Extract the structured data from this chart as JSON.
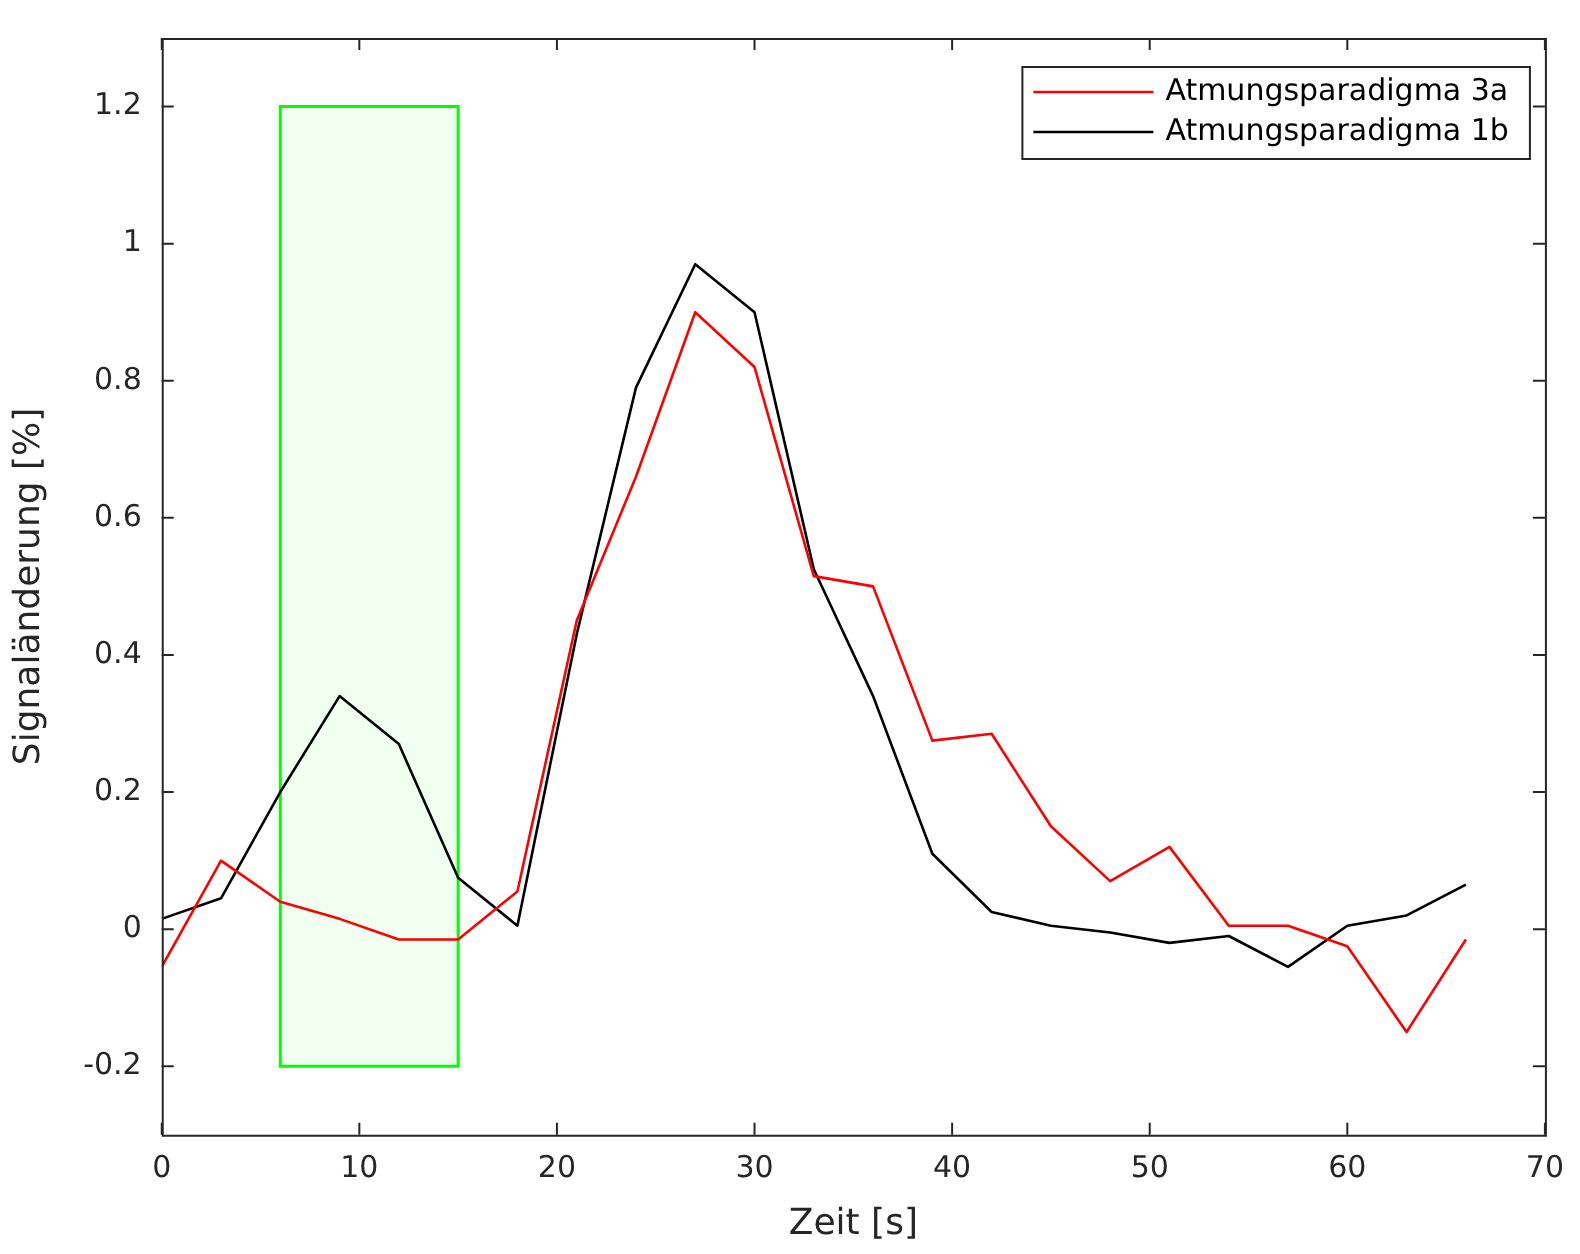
{
  "chart_data": {
    "type": "line",
    "xlabel": "Zeit [s]",
    "ylabel": "Signaländerung [%]",
    "x": [
      0,
      3,
      6,
      9,
      12,
      15,
      18,
      21,
      24,
      27,
      30,
      33,
      36,
      39,
      42,
      45,
      48,
      51,
      54,
      57,
      60,
      63,
      66
    ],
    "series": [
      {
        "name": "Atmungsparadigma 3a",
        "color": "#ff0000",
        "values": [
          -0.055,
          0.1,
          0.04,
          0.015,
          -0.015,
          -0.015,
          0.055,
          0.45,
          0.66,
          0.9,
          0.82,
          0.515,
          0.5,
          0.275,
          0.285,
          0.15,
          0.07,
          0.12,
          0.005,
          0.005,
          -0.025,
          -0.15,
          -0.015
        ]
      },
      {
        "name": "Atmungsparadigma 1b",
        "color": "#000000",
        "values": [
          0.015,
          0.045,
          0.2,
          0.34,
          0.27,
          0.075,
          0.005,
          0.43,
          0.79,
          0.97,
          0.9,
          0.525,
          0.34,
          0.11,
          0.025,
          0.005,
          -0.005,
          -0.02,
          -0.01,
          -0.055,
          0.005,
          0.02,
          0.065
        ]
      }
    ],
    "xlim": [
      0,
      70
    ],
    "xticks": [
      0,
      10,
      20,
      30,
      40,
      50,
      60,
      70
    ],
    "ylim": [
      -0.3,
      1.3
    ],
    "yticks": [
      -0.2,
      0,
      0.2,
      0.4,
      0.6,
      0.8,
      1,
      1.2
    ],
    "bands": [
      {
        "axis": "x",
        "from": 6,
        "to": 15,
        "color": "#00ff00"
      }
    ],
    "grid": false,
    "legend": "top right",
    "marker": "none",
    "line_style": "solid"
  }
}
